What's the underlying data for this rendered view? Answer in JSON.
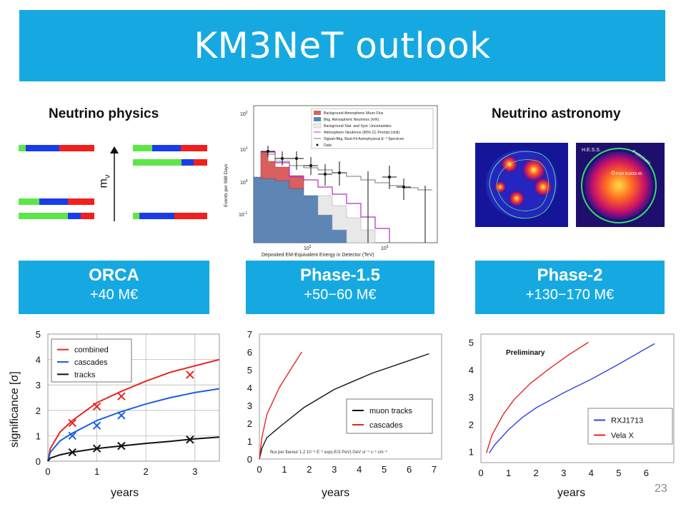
{
  "title": "KM3NeT outlook",
  "sections": {
    "physics": "Neutrino physics",
    "astronomy": "Neutrino astronomy"
  },
  "mass_label": "m",
  "mass_sub": "ν",
  "boxes": [
    {
      "name": "ORCA",
      "cost": "+40 M€"
    },
    {
      "name": "Phase-1.5",
      "cost": "+50−60 M€"
    },
    {
      "name": "Phase-2",
      "cost": "+130−170 M€"
    }
  ],
  "icecube_legend": [
    "Background Atmospheric Muon Flux",
    "Bkg. Atmospheric Neutrinos (π/K)",
    "Background Stat. and Syst. Uncertainties",
    "Atmospheric Neutrinos (90% CL Prompt Limit)",
    "Signal+Bkg. Best-Fit Astrophysical E⁻² Spectrum",
    "Data"
  ],
  "icecube_axes": {
    "ylabel": "Events per 988 Days",
    "xlabel": "Deposited EM-Equivalent Energy in Detector (TeV)"
  },
  "hess": {
    "label": "H.E.S.S.",
    "prelim": "Preliminary",
    "psr": "PSR B1833-45"
  },
  "page_number": "23",
  "colors": {
    "accent": "#16a9e1",
    "red": "#e8251f",
    "blue": "#1a5fe0",
    "green": "#5de64a"
  },
  "chart_data": [
    {
      "type": "line",
      "xlabel": "years",
      "ylabel": "significance [σ]",
      "xlim": [
        0,
        3.5
      ],
      "ylim": [
        0,
        5
      ],
      "xticks": [
        "0",
        "1",
        "2",
        "3"
      ],
      "yticks": [
        "0",
        "1",
        "2",
        "3",
        "4",
        "5"
      ],
      "legend_position": "top-left",
      "series": [
        {
          "name": "combined",
          "color": "#e8251f",
          "x": [
            0,
            0.05,
            0.25,
            0.5,
            1,
            1.5,
            2,
            2.5,
            3,
            3.5
          ],
          "y": [
            0,
            0.5,
            1.15,
            1.6,
            2.3,
            2.75,
            3.15,
            3.5,
            3.75,
            4.0
          ],
          "markers": {
            "x": [
              0.5,
              1,
              1.5,
              2.9
            ],
            "y": [
              1.5,
              2.15,
              2.55,
              3.4
            ]
          }
        },
        {
          "name": "cascades",
          "color": "#1a5fe0",
          "x": [
            0,
            0.05,
            0.25,
            0.5,
            1,
            1.5,
            2,
            2.5,
            3,
            3.5
          ],
          "y": [
            0,
            0.35,
            0.8,
            1.1,
            1.6,
            1.95,
            2.25,
            2.5,
            2.7,
            2.85
          ],
          "markers": {
            "x": [
              0.5,
              1,
              1.5
            ],
            "y": [
              1.0,
              1.4,
              1.8
            ]
          }
        },
        {
          "name": "tracks",
          "color": "#111111",
          "x": [
            0,
            0.05,
            0.25,
            0.5,
            1,
            1.5,
            2,
            2.5,
            3,
            3.5
          ],
          "y": [
            0,
            0.12,
            0.25,
            0.35,
            0.5,
            0.6,
            0.7,
            0.78,
            0.88,
            0.95
          ],
          "markers": {
            "x": [
              0.5,
              1,
              1.5,
              2.9
            ],
            "y": [
              0.35,
              0.5,
              0.6,
              0.85
            ]
          }
        }
      ]
    },
    {
      "type": "line",
      "xlabel": "years",
      "xlim": [
        0,
        7.3
      ],
      "ylim": [
        0,
        7
      ],
      "xticks": [
        "0",
        "1",
        "2",
        "3",
        "4",
        "5",
        "6",
        "7"
      ],
      "yticks": [
        "0",
        "1",
        "2",
        "3",
        "4",
        "5",
        "6",
        "7"
      ],
      "annotation": "flux per flavour 1.2 10⁻⁸ E⁻² exp(-E/3 PeV) GeV sr⁻¹ s⁻¹ cm⁻²",
      "legend_position": "bottom-right",
      "series": [
        {
          "name": "muon tracks",
          "color": "#111111",
          "x": [
            0,
            0.1,
            0.3,
            0.9,
            1.8,
            3.0,
            4.5,
            6.8
          ],
          "y": [
            0,
            0.6,
            1.2,
            1.9,
            2.9,
            3.9,
            4.8,
            5.9
          ]
        },
        {
          "name": "cascades",
          "color": "#e8251f",
          "x": [
            0,
            0.1,
            0.3,
            0.8,
            1.2,
            1.7
          ],
          "y": [
            0,
            1.2,
            2.5,
            4.0,
            4.9,
            6.0
          ]
        }
      ]
    },
    {
      "type": "line",
      "xlabel": "years",
      "title": "Preliminary",
      "xlim": [
        0,
        7
      ],
      "ylim": [
        0.6,
        5.3
      ],
      "xticks": [
        "0",
        "1",
        "2",
        "3",
        "4",
        "5",
        "6"
      ],
      "yticks": [
        "1",
        "2",
        "3",
        "4",
        "5"
      ],
      "legend_position": "bottom-right",
      "series": [
        {
          "name": "RXJ1713",
          "color": "#3344dd",
          "x": [
            0.3,
            0.5,
            1,
            1.5,
            2,
            3,
            4,
            5,
            6.3
          ],
          "y": [
            0.95,
            1.25,
            1.8,
            2.25,
            2.6,
            3.15,
            3.65,
            4.2,
            4.95
          ]
        },
        {
          "name": "Vela X",
          "color": "#e8251f",
          "x": [
            0.2,
            0.4,
            0.8,
            1.2,
            1.8,
            2.5,
            3.2,
            3.9
          ],
          "y": [
            0.95,
            1.6,
            2.35,
            2.9,
            3.5,
            4.05,
            4.55,
            5.0
          ]
        }
      ]
    }
  ]
}
